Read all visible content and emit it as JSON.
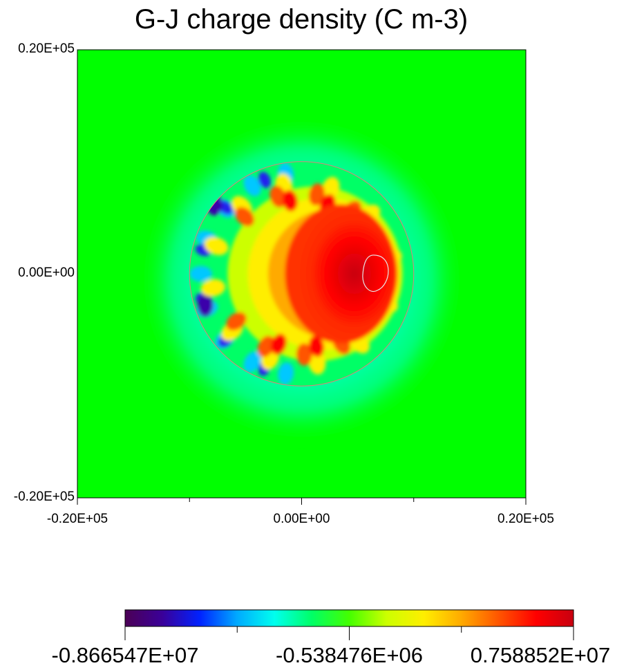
{
  "chart_data": {
    "type": "heatmap",
    "title": "G-J charge density (C m-3)",
    "xlabel": "",
    "ylabel": "",
    "xlim": [
      -20000,
      20000
    ],
    "ylim": [
      -20000,
      20000
    ],
    "x_ticks": [
      {
        "value": -20000,
        "label": "-0.20E+05"
      },
      {
        "value": 0,
        "label": "0.00E+00"
      },
      {
        "value": 20000,
        "label": "0.20E+05"
      }
    ],
    "y_ticks": [
      {
        "value": 20000,
        "label": "0.20E+05"
      },
      {
        "value": 0,
        "label": "0.00E+00"
      },
      {
        "value": -20000,
        "label": "-0.20E+05"
      }
    ],
    "x_minor_ticks": [
      -10000,
      10000
    ],
    "grid": false,
    "background_value_color": "#00ff00",
    "disk": {
      "center": [
        0,
        0
      ],
      "radius": 10000,
      "outline_color": "#e0807a"
    },
    "core_maximum_region": {
      "center": [
        6500,
        0
      ],
      "contour_color": "#e8e8e8"
    },
    "colorbar": {
      "orientation": "horizontal",
      "placement": "bottom",
      "min": -8665470,
      "max": 7588520,
      "tick_labels": [
        "-0.866547E+07",
        "-0.538476E+06",
        "0.758852E+07"
      ],
      "colormap": [
        "#4b0055",
        "#3a0099",
        "#0022ff",
        "#00aaff",
        "#00ffee",
        "#00ff66",
        "#44ff00",
        "#ccff00",
        "#ffee00",
        "#ffaa00",
        "#ff5500",
        "#ff0000",
        "#c80010"
      ]
    }
  }
}
